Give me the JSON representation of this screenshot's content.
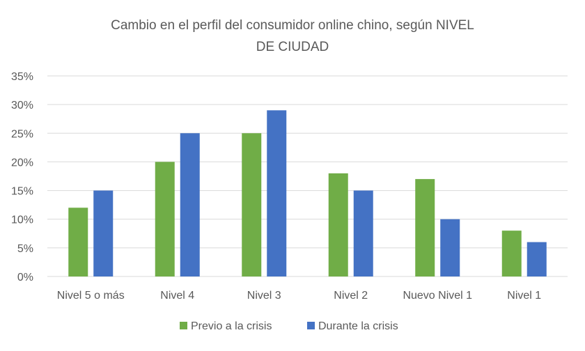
{
  "chart_data": {
    "type": "bar",
    "title_line1": "Cambio en el perfil del consumidor online chino, según NIVEL",
    "title_line2": "DE CIUDAD",
    "categories": [
      "Nivel 5 o más",
      "Nivel 4",
      "Nivel 3",
      "Nivel 2",
      "Nuevo Nivel 1",
      "Nivel 1"
    ],
    "series": [
      {
        "name": "Previo a la crisis",
        "color": "#70ad47",
        "values": [
          12,
          20,
          25,
          18,
          17,
          8
        ]
      },
      {
        "name": "Durante la crisis",
        "color": "#4472c4",
        "values": [
          15,
          25,
          29,
          15,
          10,
          6
        ]
      }
    ],
    "yticks": [
      "0%",
      "5%",
      "10%",
      "15%",
      "20%",
      "25%",
      "30%",
      "35%"
    ],
    "ylim": [
      0,
      35
    ],
    "grid": true,
    "legend": "bottom",
    "xlabel": "",
    "ylabel": ""
  }
}
